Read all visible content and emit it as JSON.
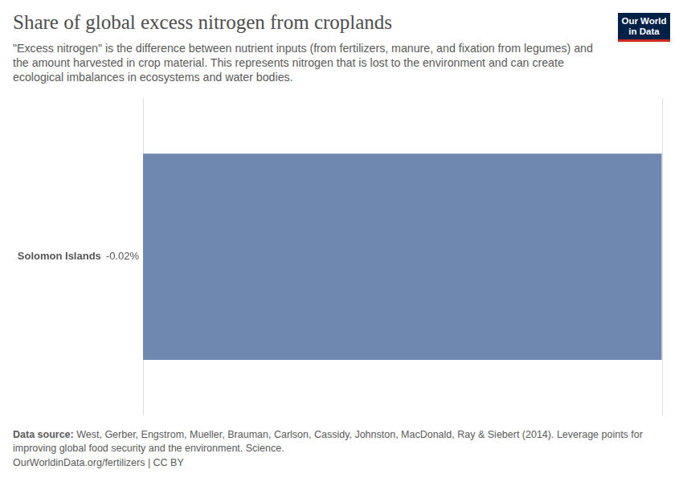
{
  "chart_data": {
    "type": "bar",
    "title": "Share of global excess nitrogen from croplands",
    "subtitle": "\"Excess nitrogen\" is the difference between nutrient inputs (from fertilizers, manure, and fixation from legumes) and the amount harvested in crop material. This represents nitrogen that is lost to the environment and can create ecological imbalances in ecosystems and water bodies.",
    "logo": [
      "Our World",
      "in Data"
    ],
    "source_label": "Data source:",
    "source": "West, Gerber, Engstrom, Mueller, Brauman, Carlson, Cassidy, Johnston, MacDonald, Ray & Siebert (2014). Leverage points for improving global food security and the environment. Science.",
    "footer": "OurWorldinData.org/fertilizers | CC BY",
    "categories": [
      "Solomon Islands"
    ],
    "values": [
      -0.02
    ],
    "value_labels": [
      "-0.02%"
    ],
    "color": "#6e88b0",
    "orientation": "horizontal",
    "data_labels": true,
    "tick_labels": false,
    "grid": true,
    "xlim": [
      -0.02,
      0
    ],
    "xticks": [
      -0.02,
      0
    ]
  }
}
